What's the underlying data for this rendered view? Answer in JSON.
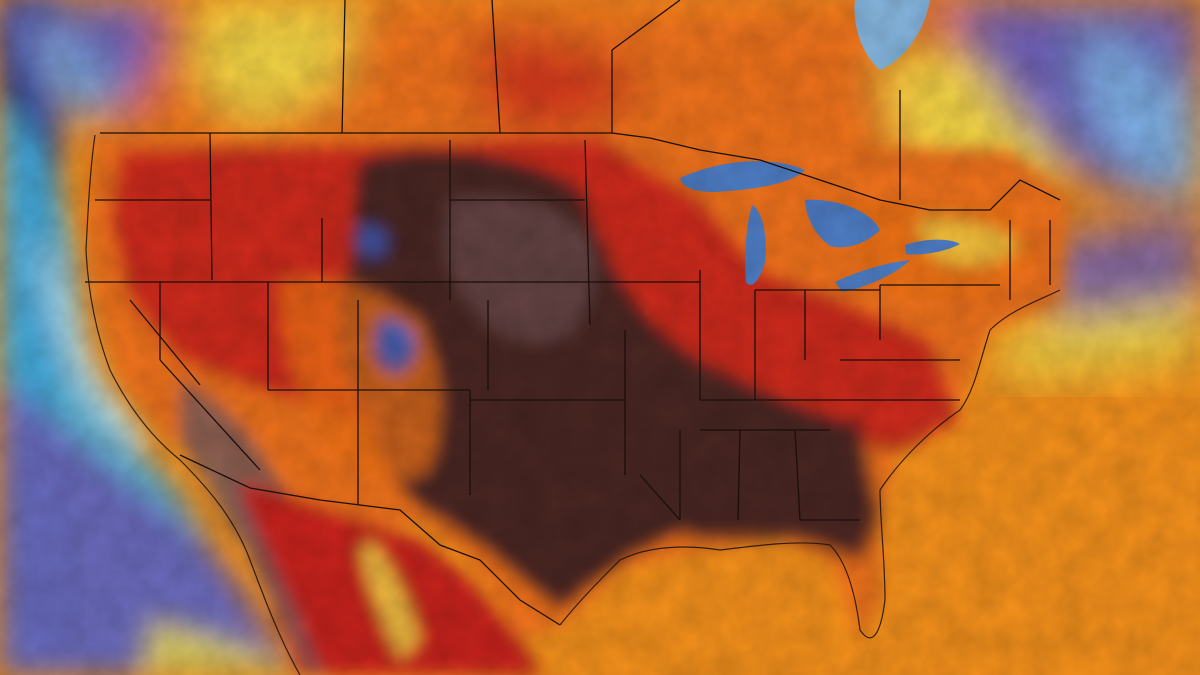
{
  "map": {
    "type": "temperature-heat-map",
    "region": "North America",
    "labels_printed": false,
    "colors": {
      "ocean_far_west": "#2f3f8a",
      "ocean_coastal_west": "#46b6e6",
      "ocean_coastal_pale": "#bfe8f4",
      "atlantic_gulf": "#f5911c",
      "gulf_deep": "#f26a10",
      "canada_cool": "#f5e04a",
      "canada_cold_purple": "#6e5fb8",
      "canada_cold_blue": "#7fb9ea",
      "warm_orange": "#f0721a",
      "hot_red": "#c8201c",
      "extreme_dark": "#4a2824",
      "extreme_pink": "#7a5a5c",
      "great_lakes": "#4f7fc8",
      "land_mountain_blue": "#3a5ec0",
      "border_line": "#1a0f0a"
    },
    "legend": []
  }
}
